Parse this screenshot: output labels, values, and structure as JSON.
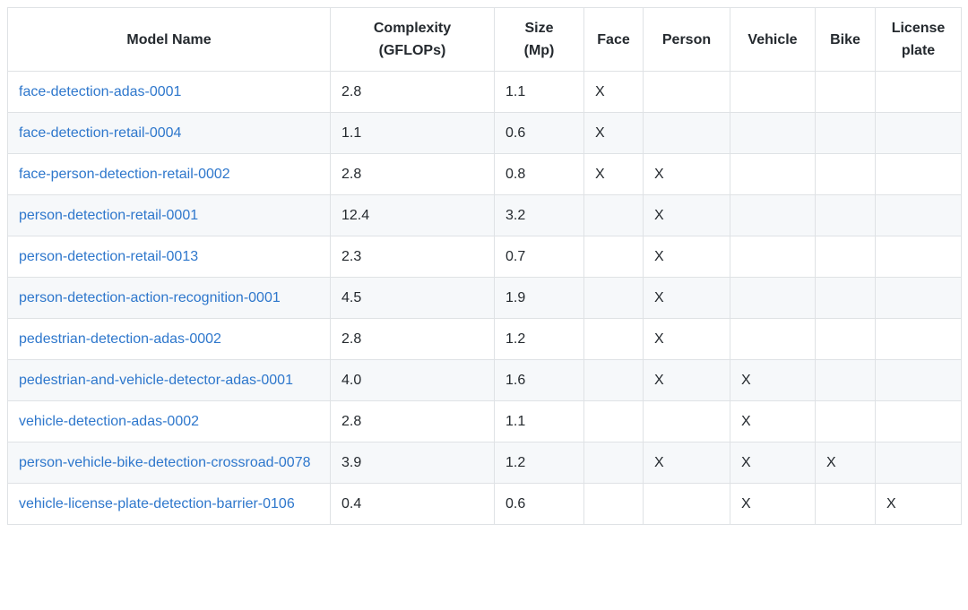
{
  "table": {
    "mark_symbol": "X",
    "colors": {
      "link_blue": "#2e77cc",
      "border": "#dfe2e5",
      "stripe_row": "#f6f8fa",
      "text": "#24292e"
    },
    "columns": [
      {
        "key": "model",
        "lines": [
          "Model Name"
        ]
      },
      {
        "key": "complexity",
        "lines": [
          "Complexity",
          "(GFLOPs)"
        ]
      },
      {
        "key": "size",
        "lines": [
          "Size",
          "(Mp)"
        ]
      },
      {
        "key": "face",
        "lines": [
          "Face"
        ]
      },
      {
        "key": "person",
        "lines": [
          "Person"
        ]
      },
      {
        "key": "vehicle",
        "lines": [
          "Vehicle"
        ]
      },
      {
        "key": "bike",
        "lines": [
          "Bike"
        ]
      },
      {
        "key": "license_plate",
        "lines": [
          "License",
          "plate"
        ]
      }
    ],
    "rows": [
      {
        "model": "face-detection-adas-0001",
        "complexity": "2.8",
        "size": "1.1",
        "face": "X",
        "person": "",
        "vehicle": "",
        "bike": "",
        "license_plate": ""
      },
      {
        "model": "face-detection-retail-0004",
        "complexity": "1.1",
        "size": "0.6",
        "face": "X",
        "person": "",
        "vehicle": "",
        "bike": "",
        "license_plate": ""
      },
      {
        "model": "face-person-detection-retail-0002",
        "complexity": "2.8",
        "size": "0.8",
        "face": "X",
        "person": "X",
        "vehicle": "",
        "bike": "",
        "license_plate": ""
      },
      {
        "model": "person-detection-retail-0001",
        "complexity": "12.4",
        "size": "3.2",
        "face": "",
        "person": "X",
        "vehicle": "",
        "bike": "",
        "license_plate": ""
      },
      {
        "model": "person-detection-retail-0013",
        "complexity": "2.3",
        "size": "0.7",
        "face": "",
        "person": "X",
        "vehicle": "",
        "bike": "",
        "license_plate": ""
      },
      {
        "model": "person-detection-action-recognition-0001",
        "complexity": "4.5",
        "size": "1.9",
        "face": "",
        "person": "X",
        "vehicle": "",
        "bike": "",
        "license_plate": ""
      },
      {
        "model": "pedestrian-detection-adas-0002",
        "complexity": "2.8",
        "size": "1.2",
        "face": "",
        "person": "X",
        "vehicle": "",
        "bike": "",
        "license_plate": ""
      },
      {
        "model": "pedestrian-and-vehicle-detector-adas-0001",
        "complexity": "4.0",
        "size": "1.6",
        "face": "",
        "person": "X",
        "vehicle": "X",
        "bike": "",
        "license_plate": ""
      },
      {
        "model": "vehicle-detection-adas-0002",
        "complexity": "2.8",
        "size": "1.1",
        "face": "",
        "person": "",
        "vehicle": "X",
        "bike": "",
        "license_plate": ""
      },
      {
        "model": "person-vehicle-bike-detection-crossroad-0078",
        "complexity": "3.9",
        "size": "1.2",
        "face": "",
        "person": "X",
        "vehicle": "X",
        "bike": "X",
        "license_plate": ""
      },
      {
        "model": "vehicle-license-plate-detection-barrier-0106",
        "complexity": "0.4",
        "size": "0.6",
        "face": "",
        "person": "",
        "vehicle": "X",
        "bike": "",
        "license_plate": "X"
      }
    ]
  }
}
